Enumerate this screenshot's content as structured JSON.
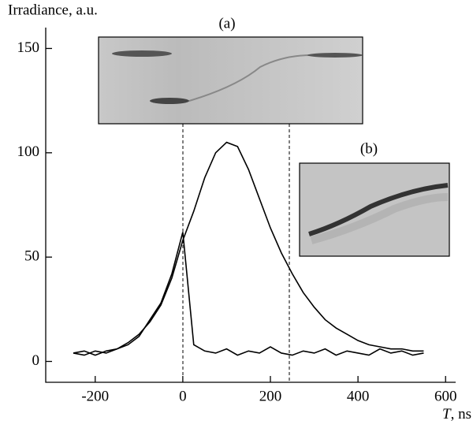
{
  "chart_data": {
    "type": "line",
    "y_label": "Irradiance, a.u.",
    "x_label_var": "T",
    "x_label_unit": ", ns",
    "annotations": [
      "(a)",
      "(b)"
    ],
    "x": [
      -250,
      -225,
      -200,
      -175,
      -150,
      -125,
      -100,
      -75,
      -50,
      -25,
      0,
      25,
      50,
      75,
      100,
      125,
      150,
      175,
      200,
      225,
      250,
      275,
      300,
      325,
      350,
      375,
      400,
      425,
      450,
      475,
      500,
      525,
      550
    ],
    "series": [
      {
        "color": "#000000",
        "values": [
          4,
          3,
          5,
          4,
          6,
          9,
          13,
          19,
          27,
          40,
          58,
          72,
          88,
          100,
          105,
          103,
          92,
          78,
          64,
          52,
          42,
          33,
          26,
          20,
          16,
          13,
          10,
          8,
          7,
          6,
          6,
          5,
          5
        ]
      },
      {
        "color": "#000000",
        "values": [
          4,
          5,
          3,
          5,
          6,
          8,
          12,
          20,
          28,
          42,
          62,
          8,
          5,
          4,
          6,
          3,
          5,
          4,
          7,
          4,
          3,
          5,
          4,
          6,
          3,
          5,
          4,
          3,
          6,
          4,
          5,
          3,
          4
        ]
      }
    ],
    "xlim": [
      -313,
      623
    ],
    "ylim": [
      -10,
      160
    ],
    "xticks": [
      -200,
      0,
      200,
      400,
      600
    ],
    "yticks": [
      0,
      50,
      100,
      150
    ]
  }
}
